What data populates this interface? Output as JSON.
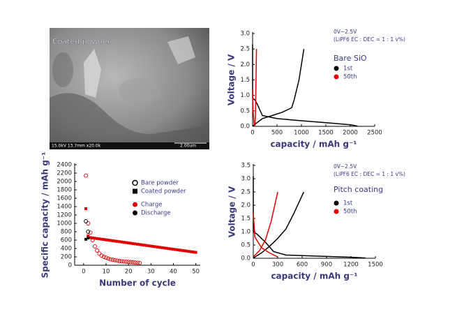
{
  "image": {
    "caption": "Coated powder",
    "info": "15.0kV 13.7mm x20.0k",
    "scale": "2.00um"
  },
  "chart_data": [
    {
      "type": "line",
      "xlabel": "capacity / mAh g⁻¹",
      "ylabel": "Voltage / V",
      "annotations": [
        "0V~2.5V",
        "(LiPF6 EC : DEC = 1 : 1 v%)",
        "Bare SiO"
      ],
      "xlim": [
        0,
        2500
      ],
      "xticks": [
        0,
        500,
        1000,
        1500,
        2000,
        2500
      ],
      "ylim": [
        0,
        3
      ],
      "yticks": [
        {
          "value": 0,
          "label": "0.0"
        },
        0.5,
        {
          "value": 1,
          "label": "1.0"
        },
        1.5,
        {
          "value": 2,
          "label": "2.0"
        },
        2.5,
        {
          "value": 3,
          "label": "3.0"
        }
      ],
      "series": [
        {
          "name": "1st",
          "color": "#000000",
          "x": [
            0,
            0,
            50,
            100,
            200,
            500,
            1000,
            1500,
            2000,
            2150,
            null,
            0,
            200,
            400,
            600,
            800,
            850,
            950,
            1050
          ],
          "values": [
            2.65,
            0.9,
            0.85,
            0.7,
            0.35,
            0.25,
            0.18,
            0.12,
            0.05,
            0.01,
            null,
            0.01,
            0.25,
            0.35,
            0.45,
            0.6,
            0.85,
            1.5,
            2.5
          ]
        },
        {
          "name": "50th",
          "color": "#e00000",
          "x": [
            0,
            10,
            30,
            50,
            null,
            50,
            60,
            70,
            80
          ],
          "values": [
            1.2,
            0.5,
            0.1,
            0.02,
            null,
            0.02,
            0.5,
            1.5,
            2.5
          ]
        }
      ]
    },
    {
      "type": "scatter",
      "xlabel": "Number of cycle",
      "ylabel": "Specific capacity / mAh g⁻¹",
      "xlim": [
        -4,
        52
      ],
      "xticks": [
        0,
        10,
        20,
        30,
        40,
        50
      ],
      "ylim": [
        0,
        2400
      ],
      "yticks": [
        0,
        200,
        400,
        600,
        800,
        1000,
        1200,
        1400,
        1600,
        1800,
        2000,
        2200,
        2400
      ],
      "modes": [
        {
          "name": "Charge",
          "color": "#e00000"
        },
        {
          "name": "Discharge",
          "color": "#000000"
        }
      ],
      "series": [
        {
          "name": "Bare powder",
          "marker": "open-circle",
          "charge": {
            "x": [
              1,
              2,
              3,
              4,
              5,
              6,
              7,
              8,
              9,
              10,
              11,
              12,
              13,
              14,
              15,
              16,
              17,
              18,
              19,
              20,
              21,
              22,
              23,
              24,
              25
            ],
            "values": [
              2140,
              1000,
              780,
              600,
              450,
              350,
              280,
              230,
              200,
              180,
              160,
              140,
              130,
              120,
              110,
              100,
              95,
              90,
              85,
              80,
              75,
              70,
              65,
              60,
              55
            ]
          },
          "discharge": {
            "x": [
              1,
              2
            ],
            "values": [
              1050,
              800
            ]
          }
        },
        {
          "name": "Coated powder",
          "marker": "square",
          "charge": {
            "x": [
              1,
              2,
              3,
              4,
              5,
              6,
              7,
              8,
              9,
              10,
              11,
              12,
              13,
              14,
              15,
              16,
              17,
              18,
              19,
              20,
              21,
              22,
              23,
              24,
              25,
              26,
              27,
              28,
              29,
              30,
              31,
              32,
              33,
              34,
              35,
              36,
              37,
              38,
              39,
              40,
              41,
              42,
              43,
              44,
              45,
              46,
              47,
              48,
              49,
              50
            ],
            "values": [
              1350,
              700,
              660,
              652,
              645,
              637,
              630,
              622,
              615,
              607,
              600,
              592,
              585,
              577,
              570,
              562,
              555,
              547,
              540,
              532,
              525,
              517,
              510,
              502,
              495,
              487,
              480,
              472,
              465,
              457,
              450,
              442,
              435,
              427,
              420,
              412,
              405,
              397,
              390,
              382,
              375,
              367,
              360,
              352,
              345,
              337,
              330,
              322,
              315,
              308
            ]
          },
          "discharge": {
            "x": [
              1,
              2
            ],
            "values": [
              620,
              650
            ]
          }
        }
      ]
    },
    {
      "type": "line",
      "xlabel": "capacity / mAh g⁻¹",
      "ylabel": "Voltage / V",
      "annotations": [
        "0V~2.5V",
        "(LiPF6 EC : DEC = 1 : 1 v%)",
        "Pitch coating"
      ],
      "xlim": [
        0,
        1500
      ],
      "xticks": [
        0,
        300,
        600,
        900,
        1200,
        1500
      ],
      "ylim": [
        0,
        3.5
      ],
      "yticks": [
        {
          "value": 0,
          "label": "0.0"
        },
        0.5,
        {
          "value": 1,
          "label": "1.0"
        },
        1.5,
        {
          "value": 2,
          "label": "2.0"
        },
        2.5,
        {
          "value": 3,
          "label": "3.0"
        },
        3.5
      ],
      "series": [
        {
          "name": "1st",
          "color": "#000000",
          "x": [
            0,
            0,
            50,
            150,
            250,
            400,
            800,
            1200,
            1380,
            null,
            0,
            100,
            200,
            300,
            400,
            500,
            620
          ],
          "values": [
            3.1,
            1.0,
            0.9,
            0.6,
            0.25,
            0.12,
            0.08,
            0.04,
            0.01,
            null,
            0.01,
            0.2,
            0.45,
            0.75,
            1.1,
            1.7,
            2.5
          ]
        },
        {
          "name": "50th",
          "color": "#e00000",
          "x": [
            0,
            20,
            100,
            200,
            300,
            null,
            0,
            80,
            150,
            220,
            300
          ],
          "values": [
            1.7,
            0.8,
            0.4,
            0.2,
            0.05,
            null,
            0.05,
            0.3,
            0.7,
            1.4,
            2.5
          ]
        }
      ]
    }
  ]
}
